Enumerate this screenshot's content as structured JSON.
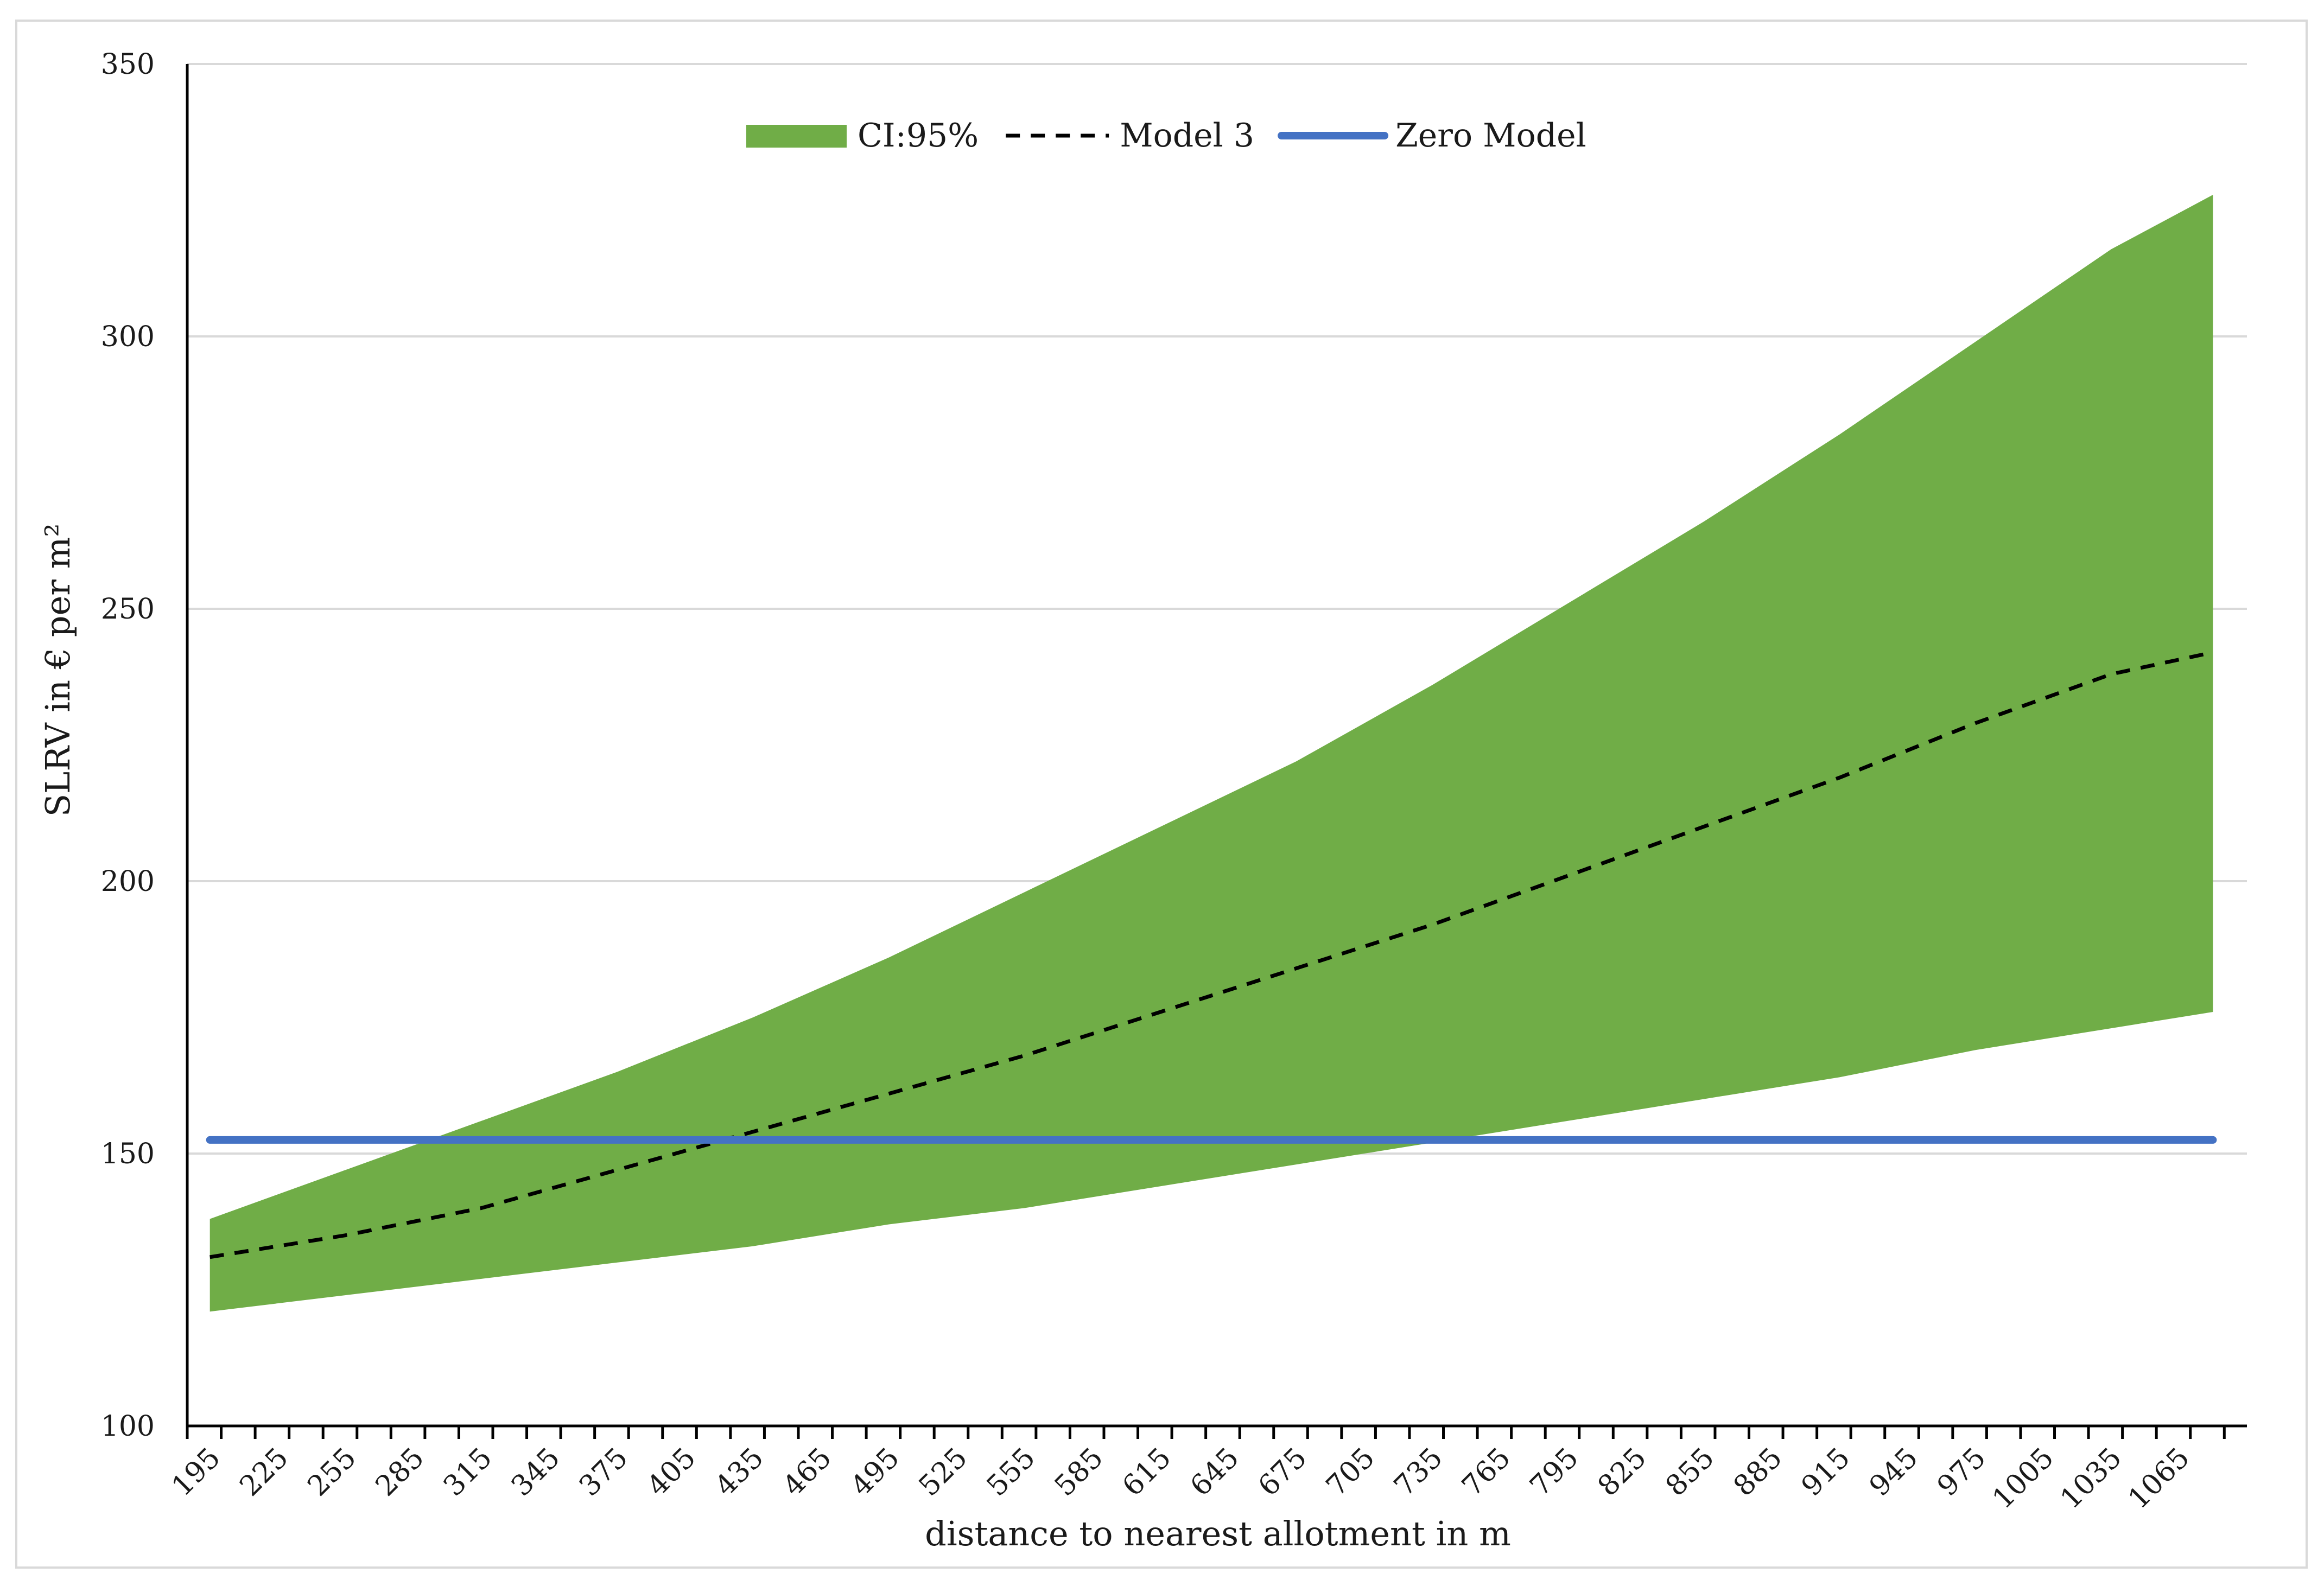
{
  "chart_data": {
    "type": "area",
    "title": "",
    "xlabel": "distance to nearest allotment in m",
    "ylabel": "SLRV in € per m²",
    "ylim": [
      100,
      350
    ],
    "yticks": [
      "100",
      "150",
      "200",
      "250",
      "300",
      "350"
    ],
    "xlim": [
      185,
      1095
    ],
    "xtick_labels": [
      "195",
      "225",
      "255",
      "285",
      "315",
      "345",
      "375",
      "405",
      "435",
      "465",
      "495",
      "525",
      "555",
      "585",
      "615",
      "645",
      "675",
      "705",
      "735",
      "765",
      "795",
      "825",
      "855",
      "885",
      "915",
      "945",
      "975",
      "1005",
      "1035",
      "1065"
    ],
    "grid": "horizontal",
    "legend_position": "top-center",
    "x": [
      195,
      255,
      315,
      375,
      435,
      495,
      555,
      615,
      675,
      735,
      795,
      855,
      915,
      975,
      1035,
      1080
    ],
    "series": [
      {
        "name": "CI:95%",
        "kind": "band",
        "color": "#70ad47",
        "upper": [
          138,
          147,
          156,
          165,
          175,
          186,
          198,
          210,
          222,
          236,
          251,
          266,
          282,
          299,
          316,
          326
        ],
        "lower": [
          121,
          124,
          127,
          130,
          133,
          137,
          140,
          144,
          148,
          152,
          156,
          160,
          164,
          169,
          173,
          176
        ]
      },
      {
        "name": "Model 3",
        "kind": "line",
        "style": "dashed",
        "color": "#000000",
        "values": [
          131,
          135,
          140,
          147,
          154,
          161,
          168,
          176,
          184,
          192,
          201,
          210,
          219,
          229,
          238,
          242
        ]
      },
      {
        "name": "Zero Model",
        "kind": "line",
        "style": "solid",
        "color": "#4472c4",
        "values": [
          152.5,
          152.5,
          152.5,
          152.5,
          152.5,
          152.5,
          152.5,
          152.5,
          152.5,
          152.5,
          152.5,
          152.5,
          152.5,
          152.5,
          152.5,
          152.5
        ]
      }
    ]
  }
}
